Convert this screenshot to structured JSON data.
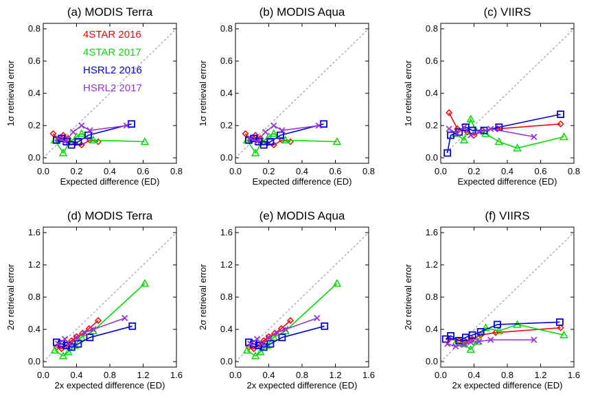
{
  "palette": {
    "4STAR 2016": "#ff0000",
    "4STAR 2017": "#00dd00",
    "HSRL2 2016": "#0000dd",
    "HSRL2 2017": "#9933dd",
    "one_to_one": "#b0b0b0"
  },
  "legend": [
    "4STAR 2016",
    "4STAR 2017",
    "HSRL2 2016",
    "HSRL2 2017"
  ],
  "chart_data": [
    {
      "type": "line",
      "title": "(a) MODIS Terra",
      "xlabel": "Expected difference (ED)",
      "ylabel": "1σ retrieval error",
      "xlim": [
        0,
        0.8
      ],
      "ylim": [
        0,
        0.8
      ],
      "xticks": [
        "0.0",
        "0.2",
        "0.4",
        "0.6",
        "0.8"
      ],
      "yticks": [
        "0.0",
        "0.2",
        "0.4",
        "0.6",
        "0.8"
      ],
      "one_to_one_line": true,
      "series": [
        {
          "name": "4STAR 2016",
          "marker": "diamond",
          "x": [
            0.06,
            0.09,
            0.12,
            0.15,
            0.19,
            0.23,
            0.28,
            0.33
          ],
          "y": [
            0.15,
            0.11,
            0.14,
            0.12,
            0.09,
            0.08,
            0.11,
            0.1
          ]
        },
        {
          "name": "4STAR 2017",
          "marker": "triangle",
          "x": [
            0.07,
            0.12,
            0.16,
            0.2,
            0.23,
            0.3,
            0.61
          ],
          "y": [
            0.11,
            0.03,
            0.1,
            0.13,
            0.15,
            0.11,
            0.1
          ]
        },
        {
          "name": "HSRL2 2016",
          "marker": "square",
          "x": [
            0.08,
            0.11,
            0.14,
            0.17,
            0.21,
            0.27,
            0.53
          ],
          "y": [
            0.11,
            0.12,
            0.1,
            0.08,
            0.1,
            0.14,
            0.21
          ]
        },
        {
          "name": "HSRL2 2017",
          "marker": "x",
          "x": [
            0.09,
            0.13,
            0.18,
            0.23,
            0.28,
            0.5
          ],
          "y": [
            0.12,
            0.1,
            0.16,
            0.2,
            0.17,
            0.2
          ]
        }
      ]
    },
    {
      "type": "line",
      "title": "(b) MODIS Aqua",
      "xlabel": "Expected difference (ED)",
      "ylabel": "1σ retrieval error",
      "xlim": [
        0,
        0.8
      ],
      "ylim": [
        0,
        0.8
      ],
      "xticks": [
        "0.0",
        "0.2",
        "0.4",
        "0.6",
        "0.8"
      ],
      "yticks": [
        "0.0",
        "0.2",
        "0.4",
        "0.6",
        "0.8"
      ],
      "one_to_one_line": true,
      "series": [
        {
          "name": "4STAR 2016",
          "marker": "diamond",
          "x": [
            0.06,
            0.09,
            0.12,
            0.15,
            0.19,
            0.23,
            0.28,
            0.33
          ],
          "y": [
            0.15,
            0.11,
            0.14,
            0.12,
            0.09,
            0.08,
            0.11,
            0.1
          ]
        },
        {
          "name": "4STAR 2017",
          "marker": "triangle",
          "x": [
            0.07,
            0.12,
            0.16,
            0.2,
            0.23,
            0.3,
            0.61
          ],
          "y": [
            0.11,
            0.03,
            0.1,
            0.13,
            0.15,
            0.11,
            0.1
          ]
        },
        {
          "name": "HSRL2 2016",
          "marker": "square",
          "x": [
            0.08,
            0.11,
            0.14,
            0.17,
            0.21,
            0.27,
            0.53
          ],
          "y": [
            0.11,
            0.12,
            0.1,
            0.08,
            0.1,
            0.14,
            0.21
          ]
        },
        {
          "name": "HSRL2 2017",
          "marker": "x",
          "x": [
            0.09,
            0.13,
            0.18,
            0.23,
            0.28,
            0.5
          ],
          "y": [
            0.12,
            0.1,
            0.16,
            0.2,
            0.17,
            0.2
          ]
        }
      ]
    },
    {
      "type": "line",
      "title": "(c) VIIRS",
      "xlabel": "Expected difference (ED)",
      "ylabel": "1σ retrieval error",
      "xlim": [
        0,
        0.8
      ],
      "ylim": [
        0,
        0.8
      ],
      "xticks": [
        "0.0",
        "0.2",
        "0.4",
        "0.6",
        "0.8"
      ],
      "yticks": [
        "0.0",
        "0.2",
        "0.4",
        "0.6",
        "0.8"
      ],
      "one_to_one_line": true,
      "series": [
        {
          "name": "4STAR 2016",
          "marker": "diamond",
          "x": [
            0.05,
            0.1,
            0.16,
            0.2,
            0.25,
            0.34,
            0.72
          ],
          "y": [
            0.28,
            0.18,
            0.16,
            0.14,
            0.17,
            0.18,
            0.21
          ]
        },
        {
          "name": "4STAR 2017",
          "marker": "triangle",
          "x": [
            0.09,
            0.14,
            0.18,
            0.21,
            0.27,
            0.35,
            0.46,
            0.74
          ],
          "y": [
            0.15,
            0.11,
            0.24,
            0.17,
            0.15,
            0.1,
            0.06,
            0.13
          ]
        },
        {
          "name": "HSRL2 2016",
          "marker": "square",
          "x": [
            0.04,
            0.06,
            0.11,
            0.15,
            0.19,
            0.26,
            0.35,
            0.72
          ],
          "y": [
            0.03,
            0.14,
            0.16,
            0.19,
            0.17,
            0.17,
            0.19,
            0.27
          ]
        },
        {
          "name": "HSRL2 2017",
          "marker": "x",
          "x": [
            0.05,
            0.1,
            0.14,
            0.18,
            0.23,
            0.3,
            0.56
          ],
          "y": [
            0.18,
            0.15,
            0.19,
            0.14,
            0.16,
            0.18,
            0.13
          ]
        }
      ]
    },
    {
      "type": "line",
      "title": "(d) MODIS Terra",
      "xlabel": "2x expected difference (ED)",
      "ylabel": "2σ retrieval error",
      "xlim": [
        0,
        1.6
      ],
      "ylim": [
        0,
        1.6
      ],
      "xticks": [
        "0.0",
        "0.4",
        "0.8",
        "1.2",
        "1.6"
      ],
      "yticks": [
        "0.0",
        "0.4",
        "0.8",
        "1.2",
        "1.6"
      ],
      "one_to_one_line": true,
      "series": [
        {
          "name": "4STAR 2016",
          "marker": "diamond",
          "x": [
            0.16,
            0.22,
            0.28,
            0.34,
            0.4,
            0.47,
            0.55,
            0.66
          ],
          "y": [
            0.18,
            0.16,
            0.21,
            0.26,
            0.31,
            0.35,
            0.41,
            0.51
          ]
        },
        {
          "name": "4STAR 2017",
          "marker": "triangle",
          "x": [
            0.14,
            0.24,
            0.3,
            0.38,
            0.46,
            0.6,
            1.22
          ],
          "y": [
            0.14,
            0.07,
            0.12,
            0.2,
            0.3,
            0.38,
            0.97
          ]
        },
        {
          "name": "HSRL2 2016",
          "marker": "square",
          "x": [
            0.16,
            0.22,
            0.28,
            0.34,
            0.42,
            0.56,
            1.07
          ],
          "y": [
            0.24,
            0.22,
            0.2,
            0.18,
            0.22,
            0.3,
            0.44
          ]
        },
        {
          "name": "HSRL2 2017",
          "marker": "x",
          "x": [
            0.18,
            0.26,
            0.32,
            0.4,
            0.5,
            0.6,
            0.98
          ],
          "y": [
            0.22,
            0.28,
            0.22,
            0.3,
            0.36,
            0.4,
            0.54
          ]
        }
      ]
    },
    {
      "type": "line",
      "title": "(e) MODIS Aqua",
      "xlabel": "2x expected difference (ED)",
      "ylabel": "2σ retrieval error",
      "xlim": [
        0,
        1.6
      ],
      "ylim": [
        0,
        1.6
      ],
      "xticks": [
        "0.0",
        "0.4",
        "0.8",
        "1.2",
        "1.6"
      ],
      "yticks": [
        "0.0",
        "0.4",
        "0.8",
        "1.2",
        "1.6"
      ],
      "one_to_one_line": true,
      "series": [
        {
          "name": "4STAR 2016",
          "marker": "diamond",
          "x": [
            0.16,
            0.22,
            0.28,
            0.34,
            0.4,
            0.47,
            0.55,
            0.66
          ],
          "y": [
            0.18,
            0.16,
            0.21,
            0.26,
            0.31,
            0.35,
            0.41,
            0.51
          ]
        },
        {
          "name": "4STAR 2017",
          "marker": "triangle",
          "x": [
            0.14,
            0.24,
            0.3,
            0.38,
            0.46,
            0.6,
            1.22
          ],
          "y": [
            0.14,
            0.07,
            0.12,
            0.2,
            0.3,
            0.38,
            0.97
          ]
        },
        {
          "name": "HSRL2 2016",
          "marker": "square",
          "x": [
            0.16,
            0.22,
            0.28,
            0.34,
            0.42,
            0.56,
            1.07
          ],
          "y": [
            0.24,
            0.22,
            0.2,
            0.18,
            0.22,
            0.3,
            0.44
          ]
        },
        {
          "name": "HSRL2 2017",
          "marker": "x",
          "x": [
            0.18,
            0.26,
            0.32,
            0.4,
            0.5,
            0.6,
            0.98
          ],
          "y": [
            0.22,
            0.28,
            0.22,
            0.3,
            0.36,
            0.4,
            0.54
          ]
        }
      ]
    },
    {
      "type": "line",
      "title": "(f) VIIRS",
      "xlabel": "2x expected difference (ED)",
      "ylabel": "2σ retrieval error",
      "xlim": [
        0,
        1.6
      ],
      "ylim": [
        0,
        1.6
      ],
      "xticks": [
        "0.0",
        "0.4",
        "0.8",
        "1.2",
        "1.6"
      ],
      "yticks": [
        "0.0",
        "0.4",
        "0.8",
        "1.2",
        "1.6"
      ],
      "one_to_one_line": true,
      "series": [
        {
          "name": "4STAR 2016",
          "marker": "diamond",
          "x": [
            0.1,
            0.22,
            0.3,
            0.38,
            0.48,
            0.66,
            1.44
          ],
          "y": [
            0.28,
            0.26,
            0.25,
            0.28,
            0.33,
            0.36,
            0.42
          ]
        },
        {
          "name": "4STAR 2017",
          "marker": "triangle",
          "x": [
            0.18,
            0.28,
            0.36,
            0.44,
            0.54,
            0.7,
            0.92,
            1.48
          ],
          "y": [
            0.23,
            0.22,
            0.15,
            0.25,
            0.42,
            0.38,
            0.46,
            0.33
          ]
        },
        {
          "name": "HSRL2 2016",
          "marker": "square",
          "x": [
            0.06,
            0.12,
            0.22,
            0.3,
            0.38,
            0.48,
            0.68,
            1.43
          ],
          "y": [
            0.28,
            0.32,
            0.26,
            0.3,
            0.33,
            0.37,
            0.46,
            0.49
          ]
        },
        {
          "name": "HSRL2 2017",
          "marker": "x",
          "x": [
            0.08,
            0.18,
            0.28,
            0.36,
            0.46,
            0.6,
            1.12
          ],
          "y": [
            0.22,
            0.19,
            0.21,
            0.24,
            0.25,
            0.27,
            0.27
          ]
        }
      ]
    }
  ]
}
